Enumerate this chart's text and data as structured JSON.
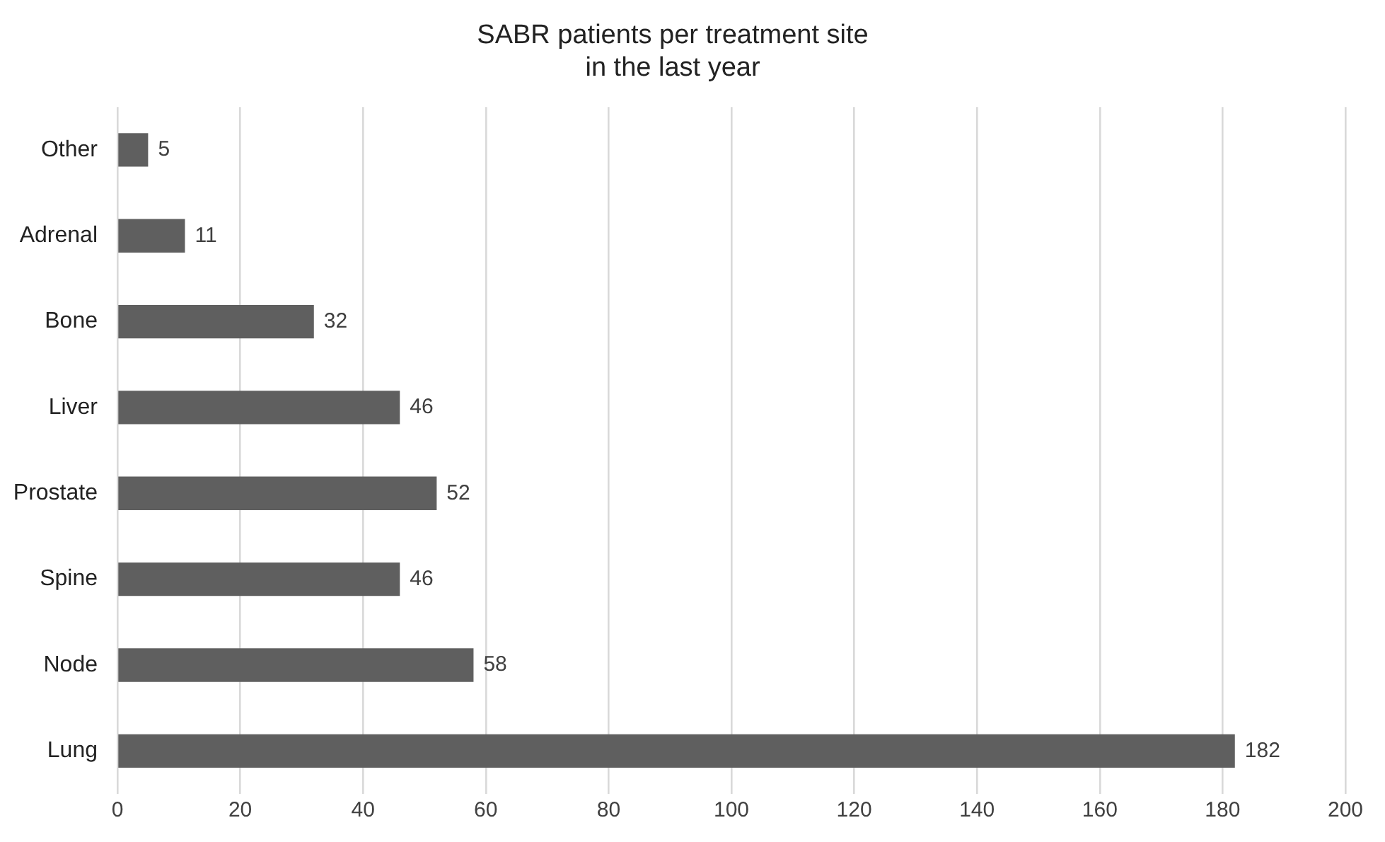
{
  "chart_data": {
    "type": "bar",
    "orientation": "horizontal",
    "title": "SABR patients per treatment site\nin the last year",
    "categories": [
      "Other",
      "Adrenal",
      "Bone",
      "Liver",
      "Prostate",
      "Spine",
      "Node",
      "Lung"
    ],
    "values": [
      5,
      11,
      32,
      46,
      52,
      46,
      58,
      182
    ],
    "color": "#5f5f5f",
    "xlim": [
      0,
      200
    ],
    "xticks": [
      0,
      20,
      40,
      60,
      80,
      100,
      120,
      140,
      160,
      180,
      200
    ],
    "grid": "x",
    "data_labels": true,
    "legend": false
  }
}
